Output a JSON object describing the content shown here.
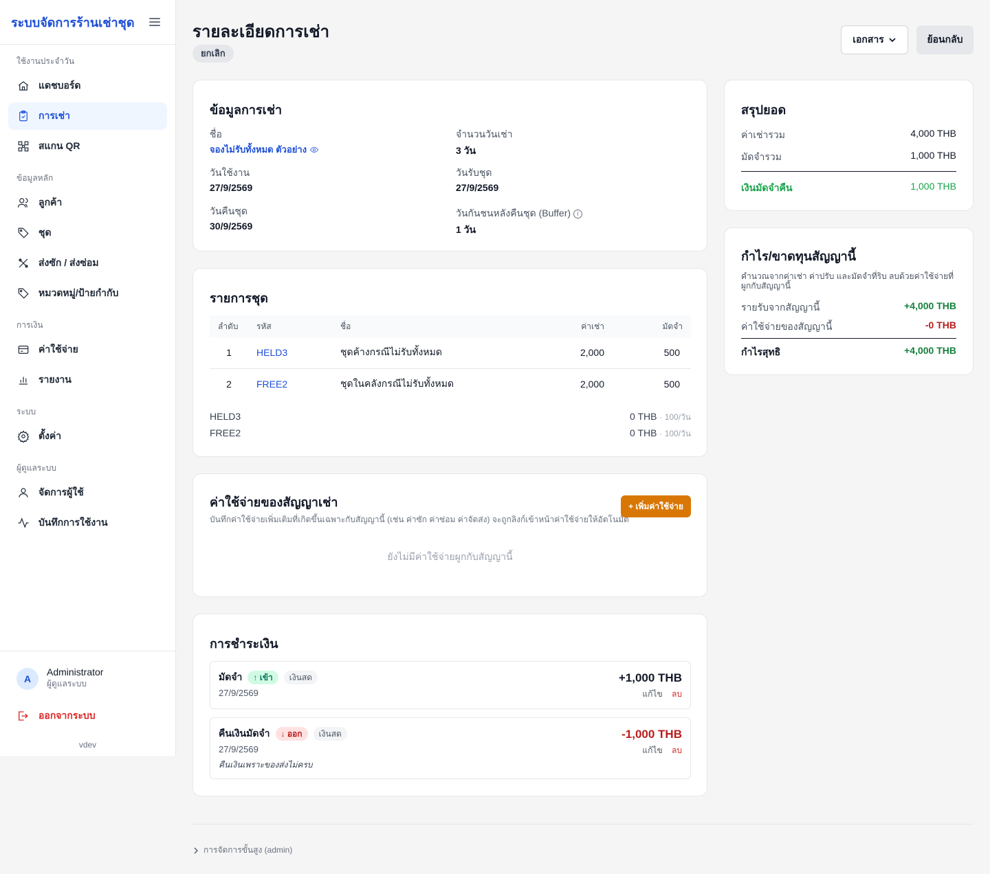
{
  "sidebar": {
    "brand": "ระบบจัดการร้านเช่าชุด",
    "groups": [
      {
        "label": "ใช้งานประจำวัน"
      },
      {
        "label": "ข้อมูลหลัก"
      },
      {
        "label": "การเงิน"
      },
      {
        "label": "ระบบ"
      },
      {
        "label": "ผู้ดูแลระบบ"
      }
    ],
    "items": [
      {
        "label": "แดชบอร์ด",
        "icon": "home-icon"
      },
      {
        "label": "การเช่า",
        "icon": "clipboard-icon"
      },
      {
        "label": "สแกน QR",
        "icon": "qr-icon"
      },
      {
        "label": "ลูกค้า",
        "icon": "users-icon"
      },
      {
        "label": "ชุด",
        "icon": "tag-icon"
      },
      {
        "label": "ส่งซัก / ส่งซ่อม",
        "icon": "tools-icon"
      },
      {
        "label": "หมวดหมู่/ป้ายกำกับ",
        "icon": "label-icon"
      },
      {
        "label": "ค่าใช้จ่าย",
        "icon": "card-icon"
      },
      {
        "label": "รายงาน",
        "icon": "chart-icon"
      },
      {
        "label": "ตั้งค่า",
        "icon": "gear-icon"
      },
      {
        "label": "จัดการผู้ใช้",
        "icon": "user-icon"
      },
      {
        "label": "บันทึกการใช้งาน",
        "icon": "activity-icon"
      }
    ],
    "user": {
      "initial": "A",
      "name": "Administrator",
      "role": "ผู้ดูแลระบบ"
    },
    "logout": "ออกจากระบบ",
    "version": "vdev"
  },
  "header": {
    "title": "รายละเอียดการเช่า",
    "status": "ยกเลิก",
    "docs_button": "เอกสาร",
    "back_button": "ย้อนกลับ"
  },
  "rental_info": {
    "title": "ข้อมูลการเช่า",
    "name_label": "ชื่อ",
    "name_value": "จองไม่รับทั้งหมด ตัวอย่าง",
    "days_label": "จำนวนวันเช่า",
    "days_value": "3 วัน",
    "use_date_label": "วันใช้งาน",
    "use_date_value": "27/9/2569",
    "pickup_label": "วันรับชุด",
    "pickup_value": "27/9/2569",
    "return_label": "วันคืนชุด",
    "return_value": "30/9/2569",
    "buffer_label": "วันกันชนหลังคืนชุด (Buffer)",
    "buffer_value": "1 วัน"
  },
  "items": {
    "title": "รายการชุด",
    "headers": [
      "ลำดับ",
      "รหัส",
      "ชื่อ",
      "ค่าเช่า",
      "มัดจำ"
    ],
    "rows": [
      {
        "no": "1",
        "code": "HELD3",
        "name": "ชุดค้างกรณีไม่รับทั้งหมด",
        "rent": "2,000",
        "deposit": "500"
      },
      {
        "no": "2",
        "code": "FREE2",
        "name": "ชุดในคลังกรณีไม่รับทั้งหมด",
        "rent": "2,000",
        "deposit": "500"
      }
    ],
    "fees": [
      {
        "code": "HELD3",
        "amount": "0 THB",
        "rate": "· 100/วัน"
      },
      {
        "code": "FREE2",
        "amount": "0 THB",
        "rate": "· 100/วัน"
      }
    ]
  },
  "expenses": {
    "title": "ค่าใช้จ่ายของสัญญาเช่า",
    "subtitle": "บันทึกค่าใช้จ่ายเพิ่มเติมที่เกิดขึ้นเฉพาะกับสัญญานี้ (เช่น ค่าซัก ค่าซ่อม ค่าจัดส่ง) จะถูกลิงก์เข้าหน้าค่าใช้จ่ายให้อัตโนมัติ",
    "add_button": "+ เพิ่มค่าใช้จ่าย",
    "empty": "ยังไม่มีค่าใช้จ่ายผูกกับสัญญานี้"
  },
  "payments": {
    "title": "การชำระเงิน",
    "list": [
      {
        "type": "มัดจำ",
        "direction": "↑ เข้า",
        "method": "เงินสด",
        "date": "27/9/2569",
        "amount": "+1,000 THB",
        "note": "",
        "edit": "แก้ไข",
        "delete": "ลบ"
      },
      {
        "type": "คืนเงินมัดจำ",
        "direction": "↓ ออก",
        "method": "เงินสด",
        "date": "27/9/2569",
        "amount": "-1,000 THB",
        "note": "คืนเงินเพราะของส่งไม่ครบ",
        "edit": "แก้ไข",
        "delete": "ลบ"
      }
    ]
  },
  "summary": {
    "title": "สรุปยอด",
    "rent_label": "ค่าเช่ารวม",
    "rent_value": "4,000 THB",
    "deposit_label": "มัดจำรวม",
    "deposit_value": "1,000 THB",
    "refund_label": "เงินมัดจำคืน",
    "refund_value": "1,000 THB"
  },
  "profit": {
    "title": "กำไร/ขาดทุนสัญญานี้",
    "description": "คำนวณจากค่าเช่า ค่าปรับ และมัดจำที่ริบ ลบด้วยค่าใช้จ่ายที่ผูกกับสัญญานี้",
    "income_label": "รายรับจากสัญญานี้",
    "income_value": "+4,000 THB",
    "expense_label": "ค่าใช้จ่ายของสัญญานี้",
    "expense_value": "-0 THB",
    "net_label": "กำไรสุทธิ",
    "net_value": "+4,000 THB"
  },
  "footer": {
    "advanced": "การจัดการขั้นสูง (admin)"
  },
  "colors": {
    "accent": "#1d4ed8",
    "orange": "#d97706",
    "green": "#16a34a",
    "red": "#b91c1c"
  }
}
